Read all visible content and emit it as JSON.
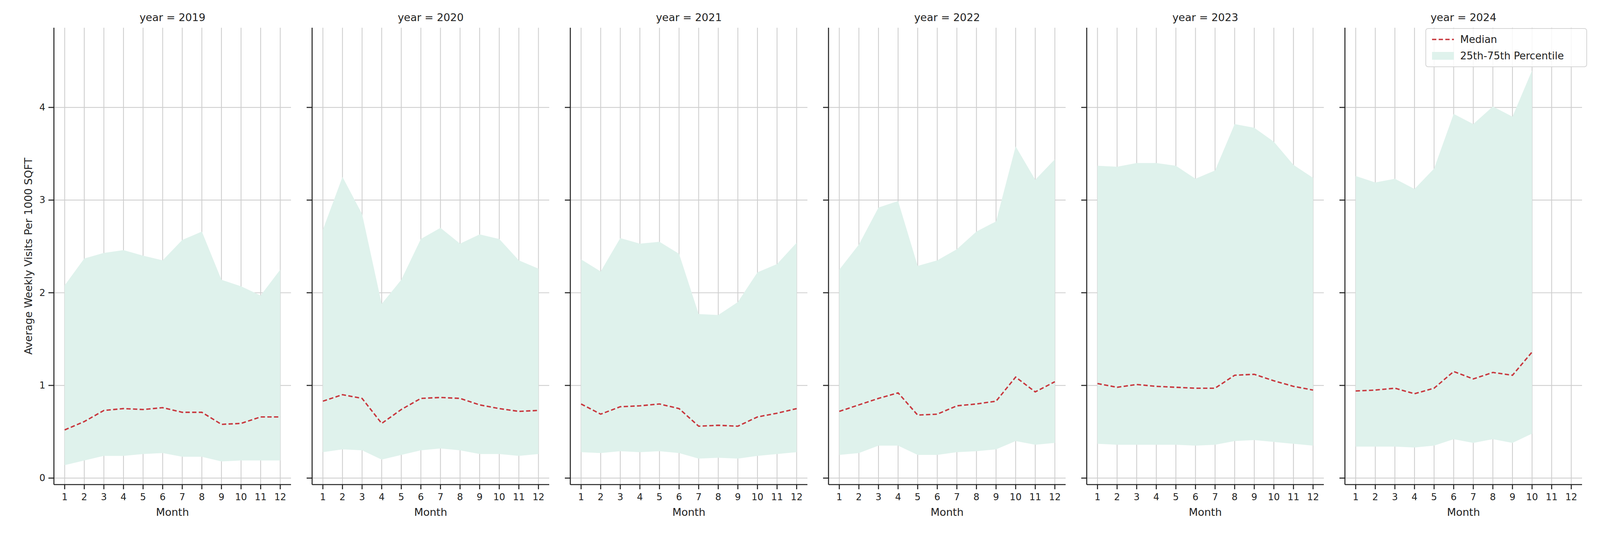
{
  "chart_data": [
    {
      "type": "line",
      "title": "year = 2019",
      "x_label": "Month",
      "y_label": "Average Weekly Visits Per 1000 SQFT",
      "x": [
        1,
        2,
        3,
        4,
        5,
        6,
        7,
        8,
        9,
        10,
        11,
        12
      ],
      "xlim": [
        0.45,
        12.55
      ],
      "xticks": [
        1,
        2,
        3,
        4,
        5,
        6,
        7,
        8,
        9,
        10,
        11,
        12
      ],
      "ylim": [
        -0.07,
        4.86
      ],
      "yticks": [
        0,
        1,
        2,
        3,
        4
      ],
      "grid": true,
      "tick_labels": true,
      "series": [
        {
          "color": "#c8373d",
          "line_style": "dashed",
          "values": [
            0.52,
            0.61,
            0.73,
            0.75,
            0.74,
            0.76,
            0.71,
            0.71,
            0.58,
            0.59,
            0.66,
            0.66
          ]
        },
        {
          "type": "area",
          "color": "#dff2ec",
          "lower": [
            0.14,
            0.19,
            0.24,
            0.24,
            0.26,
            0.27,
            0.23,
            0.23,
            0.18,
            0.19,
            0.19,
            0.19
          ],
          "upper": [
            2.08,
            2.37,
            2.43,
            2.46,
            2.4,
            2.35,
            2.57,
            2.66,
            2.14,
            2.07,
            1.97,
            2.25
          ]
        }
      ]
    },
    {
      "type": "line",
      "title": "year = 2020",
      "x_label": "Month",
      "x": [
        1,
        2,
        3,
        4,
        5,
        6,
        7,
        8,
        9,
        10,
        11,
        12
      ],
      "xlim": [
        0.45,
        12.55
      ],
      "xticks": [
        1,
        2,
        3,
        4,
        5,
        6,
        7,
        8,
        9,
        10,
        11,
        12
      ],
      "ylim": [
        -0.07,
        4.86
      ],
      "yticks": [
        0,
        1,
        2,
        3,
        4
      ],
      "grid": true,
      "tick_labels": "x",
      "series": [
        {
          "color": "#c8373d",
          "line_style": "dashed",
          "values": [
            0.83,
            0.9,
            0.86,
            0.59,
            0.74,
            0.86,
            0.87,
            0.86,
            0.79,
            0.75,
            0.72,
            0.73
          ]
        },
        {
          "type": "area",
          "color": "#dff2ec",
          "lower": [
            0.28,
            0.31,
            0.3,
            0.2,
            0.25,
            0.3,
            0.32,
            0.3,
            0.26,
            0.26,
            0.24,
            0.26
          ],
          "upper": [
            2.68,
            3.25,
            2.85,
            1.88,
            2.14,
            2.58,
            2.7,
            2.53,
            2.63,
            2.58,
            2.35,
            2.26
          ]
        }
      ]
    },
    {
      "type": "line",
      "title": "year = 2021",
      "x_label": "Month",
      "x": [
        1,
        2,
        3,
        4,
        5,
        6,
        7,
        8,
        9,
        10,
        11,
        12
      ],
      "xlim": [
        0.45,
        12.55
      ],
      "xticks": [
        1,
        2,
        3,
        4,
        5,
        6,
        7,
        8,
        9,
        10,
        11,
        12
      ],
      "ylim": [
        -0.07,
        4.86
      ],
      "yticks": [
        0,
        1,
        2,
        3,
        4
      ],
      "grid": true,
      "tick_labels": "x",
      "series": [
        {
          "color": "#c8373d",
          "line_style": "dashed",
          "values": [
            0.8,
            0.69,
            0.77,
            0.78,
            0.8,
            0.75,
            0.56,
            0.57,
            0.56,
            0.66,
            0.7,
            0.75
          ]
        },
        {
          "type": "area",
          "color": "#dff2ec",
          "lower": [
            0.28,
            0.27,
            0.29,
            0.28,
            0.29,
            0.27,
            0.21,
            0.22,
            0.21,
            0.24,
            0.26,
            0.28
          ],
          "upper": [
            2.36,
            2.23,
            2.59,
            2.53,
            2.55,
            2.42,
            1.77,
            1.76,
            1.9,
            2.22,
            2.31,
            2.54
          ]
        }
      ]
    },
    {
      "type": "line",
      "title": "year = 2022",
      "x_label": "Month",
      "x": [
        1,
        2,
        3,
        4,
        5,
        6,
        7,
        8,
        9,
        10,
        11,
        12
      ],
      "xlim": [
        0.45,
        12.55
      ],
      "xticks": [
        1,
        2,
        3,
        4,
        5,
        6,
        7,
        8,
        9,
        10,
        11,
        12
      ],
      "ylim": [
        -0.07,
        4.86
      ],
      "yticks": [
        0,
        1,
        2,
        3,
        4
      ],
      "grid": true,
      "tick_labels": "x",
      "series": [
        {
          "color": "#c8373d",
          "line_style": "dashed",
          "values": [
            0.72,
            0.79,
            0.86,
            0.92,
            0.68,
            0.69,
            0.78,
            0.8,
            0.83,
            1.09,
            0.93,
            1.04
          ]
        },
        {
          "type": "area",
          "color": "#dff2ec",
          "lower": [
            0.25,
            0.27,
            0.35,
            0.35,
            0.25,
            0.25,
            0.28,
            0.29,
            0.31,
            0.4,
            0.36,
            0.38
          ],
          "upper": [
            2.25,
            2.52,
            2.92,
            2.99,
            2.29,
            2.35,
            2.47,
            2.66,
            2.77,
            3.58,
            3.22,
            3.44
          ]
        }
      ]
    },
    {
      "type": "line",
      "title": "year = 2023",
      "x_label": "Month",
      "x": [
        1,
        2,
        3,
        4,
        5,
        6,
        7,
        8,
        9,
        10,
        11,
        12
      ],
      "xlim": [
        0.45,
        12.55
      ],
      "xticks": [
        1,
        2,
        3,
        4,
        5,
        6,
        7,
        8,
        9,
        10,
        11,
        12
      ],
      "ylim": [
        -0.07,
        4.86
      ],
      "yticks": [
        0,
        1,
        2,
        3,
        4
      ],
      "grid": true,
      "tick_labels": "x",
      "series": [
        {
          "color": "#c8373d",
          "line_style": "dashed",
          "values": [
            1.02,
            0.98,
            1.01,
            0.99,
            0.98,
            0.97,
            0.97,
            1.11,
            1.12,
            1.05,
            0.99,
            0.95
          ]
        },
        {
          "type": "area",
          "color": "#dff2ec",
          "lower": [
            0.37,
            0.36,
            0.36,
            0.36,
            0.36,
            0.35,
            0.36,
            0.4,
            0.41,
            0.39,
            0.37,
            0.35
          ],
          "upper": [
            3.37,
            3.36,
            3.4,
            3.4,
            3.37,
            3.23,
            3.32,
            3.82,
            3.78,
            3.63,
            3.38,
            3.24
          ]
        }
      ]
    },
    {
      "type": "line",
      "title": "year = 2024",
      "x_label": "Month",
      "legend": "upper right",
      "x": [
        1,
        2,
        3,
        4,
        5,
        6,
        7,
        8,
        9,
        10,
        11,
        12
      ],
      "xlim": [
        0.45,
        12.55
      ],
      "xticks": [
        1,
        2,
        3,
        4,
        5,
        6,
        7,
        8,
        9,
        10,
        11,
        12
      ],
      "ylim": [
        -0.07,
        4.86
      ],
      "yticks": [
        0,
        1,
        2,
        3,
        4
      ],
      "grid": true,
      "tick_labels": "x",
      "series": [
        {
          "name": "Median",
          "color": "#c8373d",
          "line_style": "dashed",
          "values": [
            0.94,
            0.95,
            0.97,
            0.91,
            0.97,
            1.15,
            1.07,
            1.14,
            1.11,
            1.36,
            null,
            null
          ]
        },
        {
          "name": "25th-75th Percentile",
          "type": "area",
          "color": "#dff2ec",
          "lower": [
            0.34,
            0.34,
            0.34,
            0.33,
            0.35,
            0.42,
            0.38,
            0.42,
            0.38,
            0.48,
            null,
            null
          ],
          "upper": [
            3.26,
            3.19,
            3.23,
            3.12,
            3.34,
            3.93,
            3.82,
            4.01,
            3.9,
            4.4,
            null,
            null
          ]
        }
      ]
    }
  ]
}
